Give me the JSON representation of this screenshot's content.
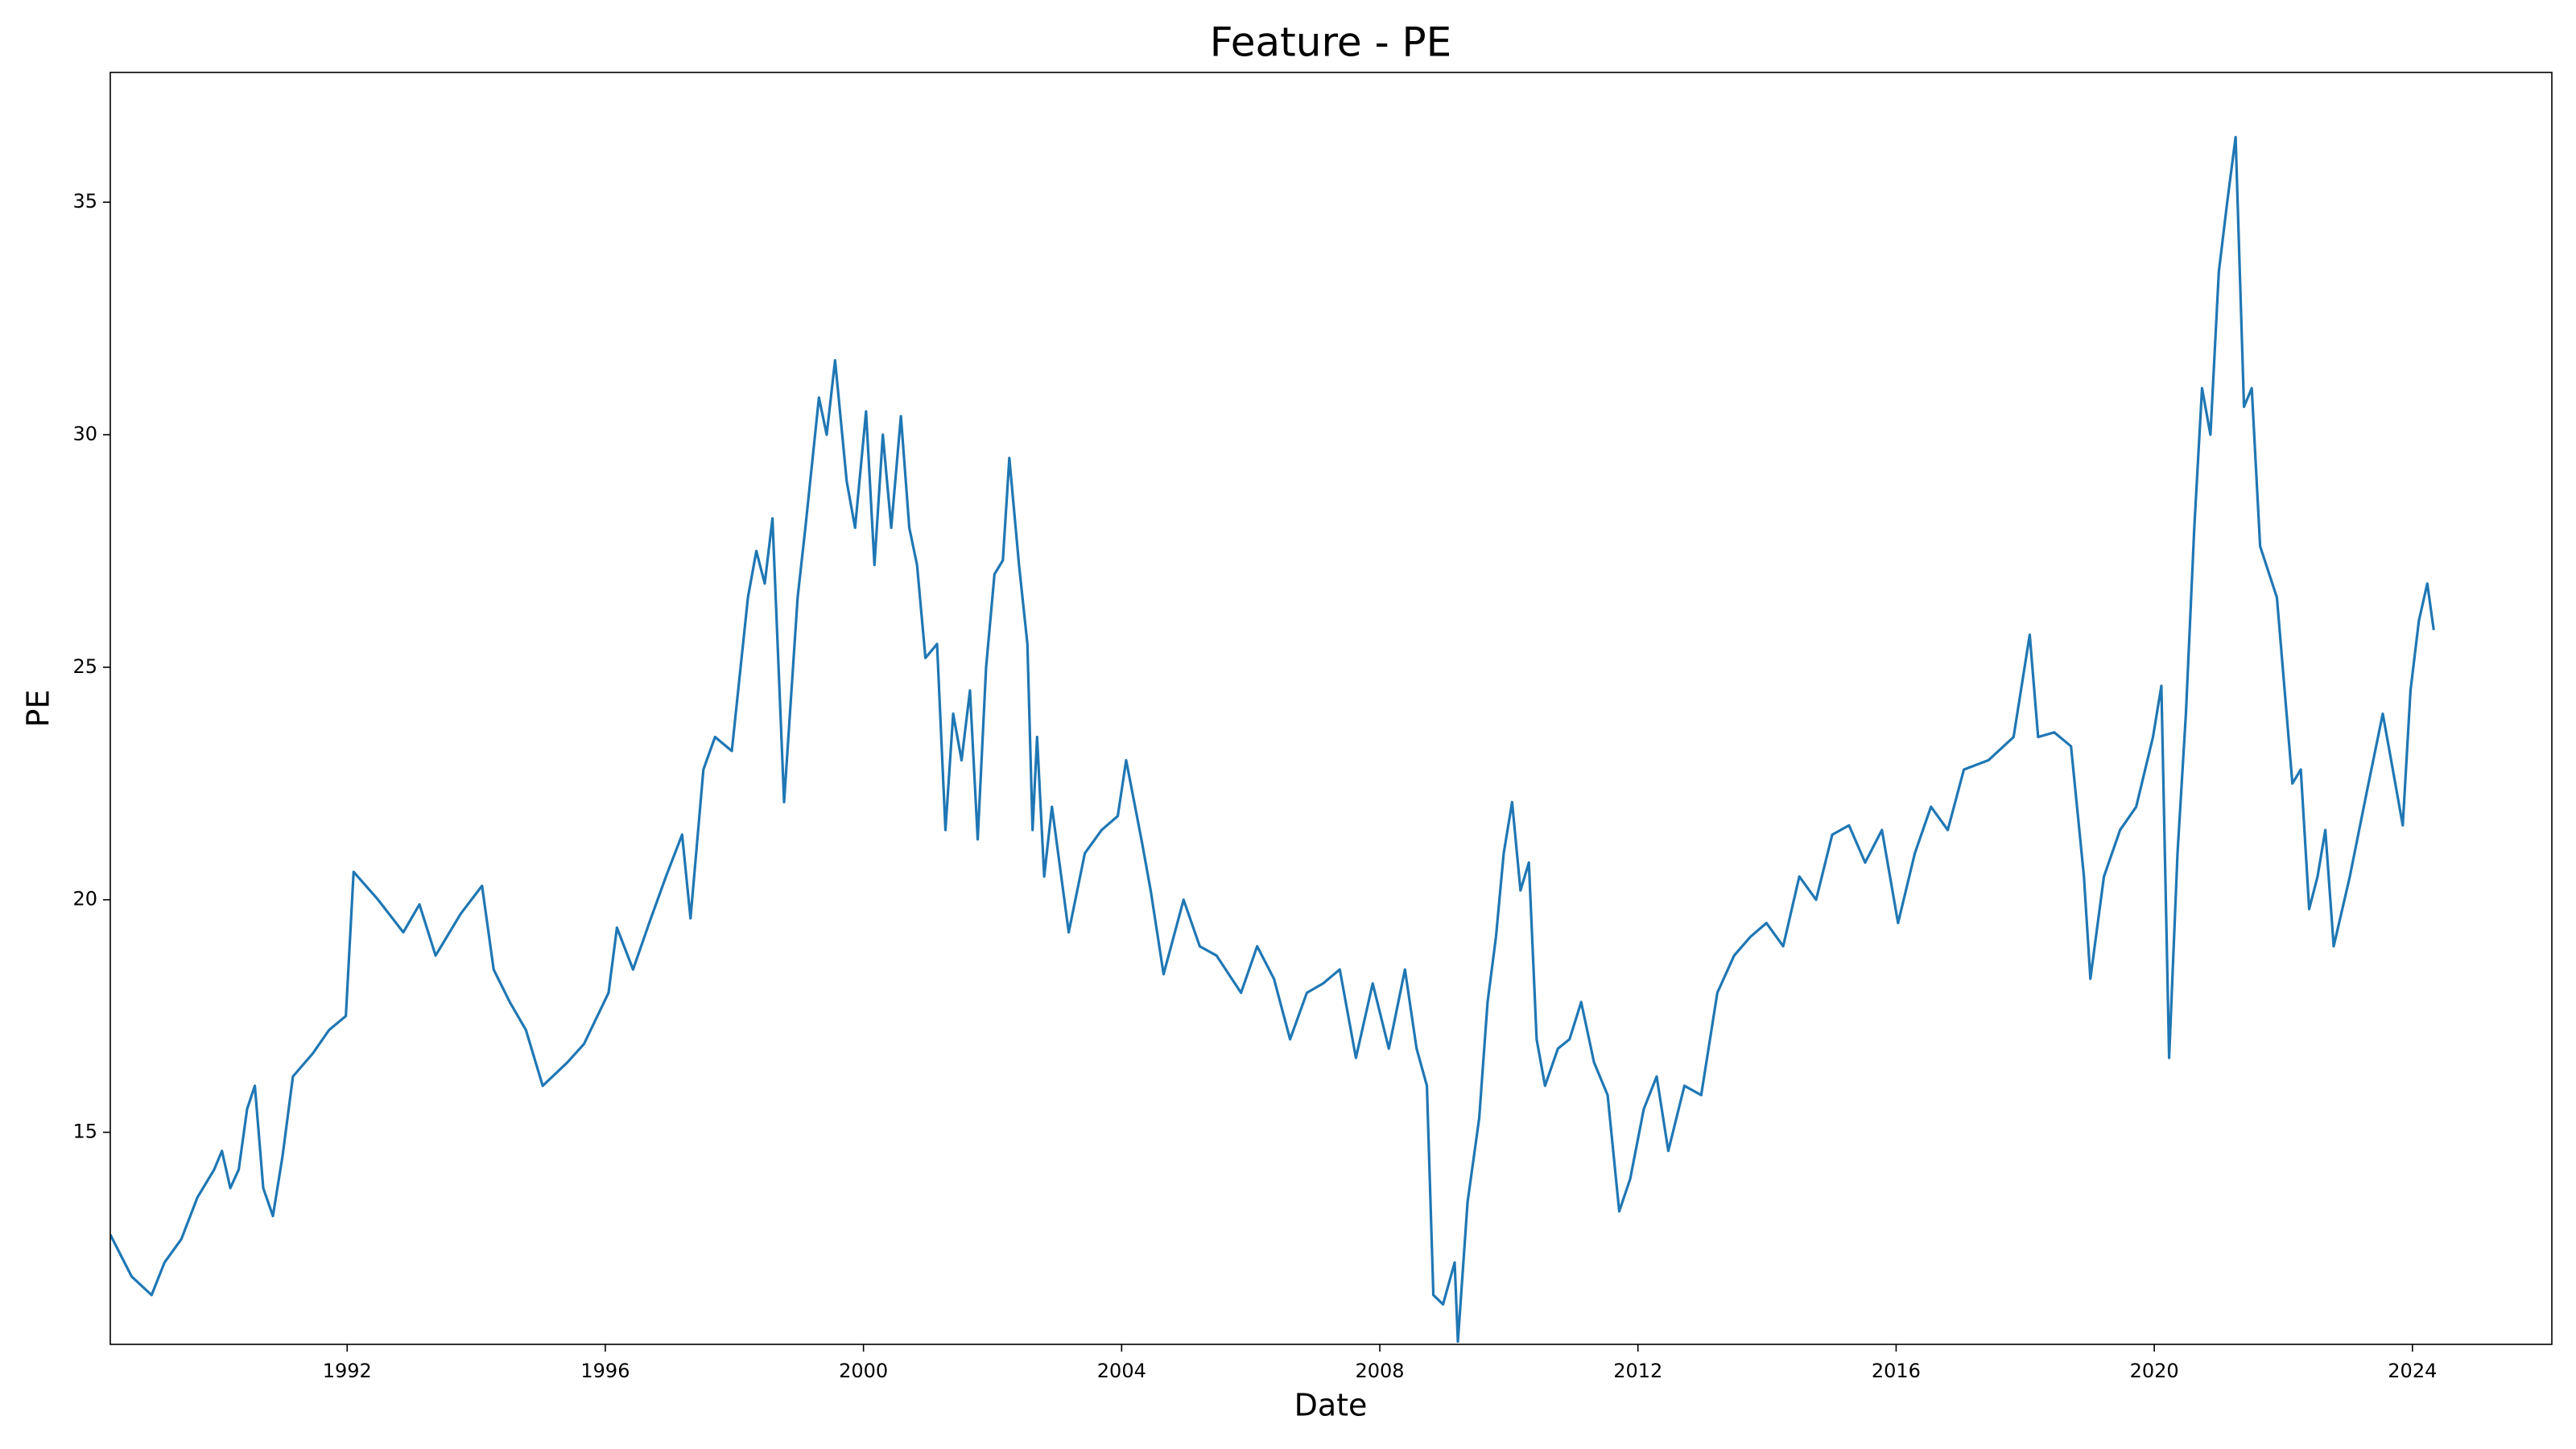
{
  "chart_data": {
    "type": "line",
    "title": "Feature - PE",
    "xlabel": "Date",
    "ylabel": "PE",
    "color": "#1f77b4",
    "xlim": [
      1988.33,
      2026.16
    ],
    "ylim": [
      10.44,
      37.79
    ],
    "xticks": [
      1992,
      1996,
      2000,
      2004,
      2008,
      2012,
      2016,
      2020,
      2024
    ],
    "yticks": [
      15,
      20,
      25,
      30,
      35
    ],
    "x": [
      1988.33,
      1988.66,
      1988.97,
      1989.17,
      1989.43,
      1989.68,
      1989.94,
      1990.06,
      1990.19,
      1990.32,
      1990.45,
      1990.57,
      1990.7,
      1990.85,
      1991.0,
      1991.16,
      1991.47,
      1991.72,
      1991.98,
      1992.1,
      1992.48,
      1992.87,
      1993.12,
      1993.37,
      1993.76,
      1994.09,
      1994.27,
      1994.52,
      1994.77,
      1995.03,
      1995.41,
      1995.67,
      1996.05,
      1996.18,
      1996.43,
      1996.68,
      1996.94,
      1997.19,
      1997.32,
      1997.52,
      1997.7,
      1997.96,
      1998.21,
      1998.34,
      1998.47,
      1998.59,
      1998.77,
      1998.98,
      1999.1,
      1999.31,
      1999.43,
      1999.56,
      1999.74,
      1999.87,
      2000.04,
      2000.17,
      2000.3,
      2000.43,
      2000.58,
      2000.71,
      2000.83,
      2000.96,
      2001.14,
      2001.27,
      2001.39,
      2001.52,
      2001.65,
      2001.77,
      2001.9,
      2002.03,
      2002.16,
      2002.26,
      2002.41,
      2002.54,
      2002.62,
      2002.69,
      2002.8,
      2002.92,
      2003.18,
      2003.43,
      2003.69,
      2003.94,
      2004.07,
      2004.32,
      2004.45,
      2004.65,
      2004.96,
      2005.21,
      2005.47,
      2005.85,
      2006.1,
      2006.36,
      2006.61,
      2006.87,
      2007.12,
      2007.38,
      2007.63,
      2007.89,
      2008.14,
      2008.39,
      2008.57,
      2008.73,
      2008.83,
      2008.98,
      2009.16,
      2009.21,
      2009.36,
      2009.54,
      2009.67,
      2009.8,
      2009.92,
      2010.05,
      2010.18,
      2010.31,
      2010.43,
      2010.56,
      2010.76,
      2010.94,
      2011.12,
      2011.32,
      2011.53,
      2011.71,
      2011.88,
      2012.09,
      2012.29,
      2012.47,
      2012.72,
      2012.98,
      2013.23,
      2013.49,
      2013.74,
      2013.99,
      2014.25,
      2014.5,
      2014.76,
      2015.01,
      2015.27,
      2015.52,
      2015.78,
      2016.03,
      2016.29,
      2016.54,
      2016.8,
      2017.05,
      2017.43,
      2017.82,
      2018.07,
      2018.2,
      2018.45,
      2018.71,
      2018.91,
      2019.01,
      2019.22,
      2019.47,
      2019.72,
      2019.98,
      2020.11,
      2020.23,
      2020.36,
      2020.49,
      2020.62,
      2020.74,
      2020.87,
      2021.0,
      2021.13,
      2021.26,
      2021.39,
      2021.51,
      2021.64,
      2021.9,
      2022.14,
      2022.27,
      2022.4,
      2022.53,
      2022.65,
      2022.78,
      2023.03,
      2023.29,
      2023.54,
      2023.67,
      2023.85,
      2023.97,
      2024.1,
      2024.23,
      2024.33
    ],
    "values": [
      12.8,
      11.9,
      11.5,
      12.2,
      12.7,
      13.6,
      14.2,
      14.6,
      13.8,
      14.2,
      15.5,
      16.0,
      13.8,
      13.2,
      14.5,
      16.2,
      16.7,
      17.2,
      17.5,
      20.6,
      20.0,
      19.3,
      19.9,
      18.8,
      19.7,
      20.3,
      18.5,
      17.8,
      17.2,
      16.0,
      16.5,
      16.9,
      18.0,
      19.4,
      18.5,
      19.5,
      20.5,
      21.4,
      19.6,
      22.8,
      23.5,
      23.2,
      26.5,
      27.5,
      26.8,
      28.2,
      22.1,
      26.5,
      28.0,
      30.8,
      30.0,
      31.6,
      29.0,
      28.0,
      30.5,
      27.2,
      30.0,
      28.0,
      30.4,
      28.0,
      27.2,
      25.2,
      25.5,
      21.5,
      24.0,
      23.0,
      24.5,
      21.3,
      25.0,
      27.0,
      27.3,
      29.5,
      27.2,
      25.5,
      21.5,
      23.5,
      20.5,
      22.0,
      19.3,
      21.0,
      21.5,
      21.8,
      23.0,
      21.2,
      20.2,
      18.4,
      20.0,
      19.0,
      18.8,
      18.0,
      19.0,
      18.3,
      17.0,
      18.0,
      18.2,
      18.5,
      16.6,
      18.2,
      16.8,
      18.5,
      16.8,
      16.0,
      11.5,
      11.3,
      12.2,
      10.5,
      13.5,
      15.3,
      17.8,
      19.2,
      21.0,
      22.1,
      20.2,
      20.8,
      17.0,
      16.0,
      16.8,
      17.0,
      17.8,
      16.5,
      15.8,
      13.3,
      14.0,
      15.5,
      16.2,
      14.6,
      16.0,
      15.8,
      18.0,
      18.8,
      19.2,
      19.5,
      19.0,
      20.5,
      20.0,
      21.4,
      21.6,
      20.8,
      21.5,
      19.5,
      21.0,
      22.0,
      21.5,
      22.8,
      23.0,
      23.5,
      25.7,
      23.5,
      23.6,
      23.3,
      20.5,
      18.3,
      20.5,
      21.5,
      22.0,
      23.5,
      24.6,
      16.6,
      21.0,
      24.0,
      28.0,
      31.0,
      30.0,
      33.5,
      35.0,
      36.4,
      30.6,
      31.0,
      27.6,
      26.5,
      22.5,
      22.8,
      19.8,
      20.5,
      21.5,
      19.0,
      20.5,
      22.3,
      24.0,
      23.0,
      21.6,
      24.5,
      26.0,
      26.8,
      25.8
    ]
  }
}
